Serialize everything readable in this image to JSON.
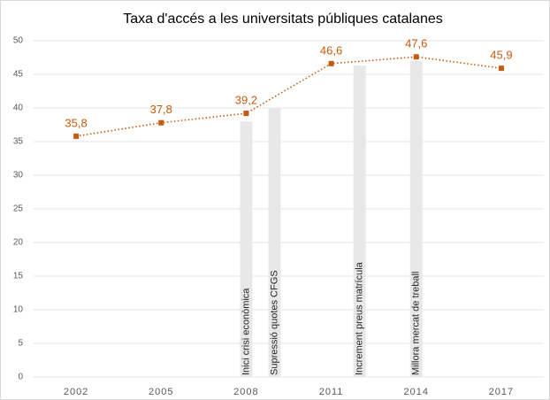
{
  "chart_data": {
    "type": "line",
    "title": "Taxa d'accés a les universitats públiques catalanes",
    "x": [
      2002,
      2005,
      2008,
      2011,
      2014,
      2017
    ],
    "xlim": [
      2000.5,
      2018.5
    ],
    "xticks": [
      2002,
      2005,
      2008,
      2011,
      2014,
      2017
    ],
    "ylim": [
      0,
      50
    ],
    "yticks": [
      0,
      5,
      10,
      15,
      20,
      25,
      30,
      35,
      40,
      45,
      50
    ],
    "grid": true,
    "series": [
      {
        "color": "#c55a11",
        "values": [
          35.8,
          37.8,
          39.2,
          46.6,
          47.6,
          45.9
        ],
        "value_labels": [
          "35,8",
          "37,8",
          "39,2",
          "46,6",
          "47,6",
          "45,9"
        ]
      }
    ],
    "annotations": [
      {
        "text": "Inici crisi econòmica",
        "x": 2008,
        "value": 38
      },
      {
        "text": "Supressió quotes CFGS",
        "x": 2009,
        "value": 40
      },
      {
        "text": "Increment preus matrícula",
        "x": 2012,
        "value": 46.3
      },
      {
        "text": "Millora mercat de treball",
        "x": 2014,
        "value": 47
      }
    ]
  }
}
